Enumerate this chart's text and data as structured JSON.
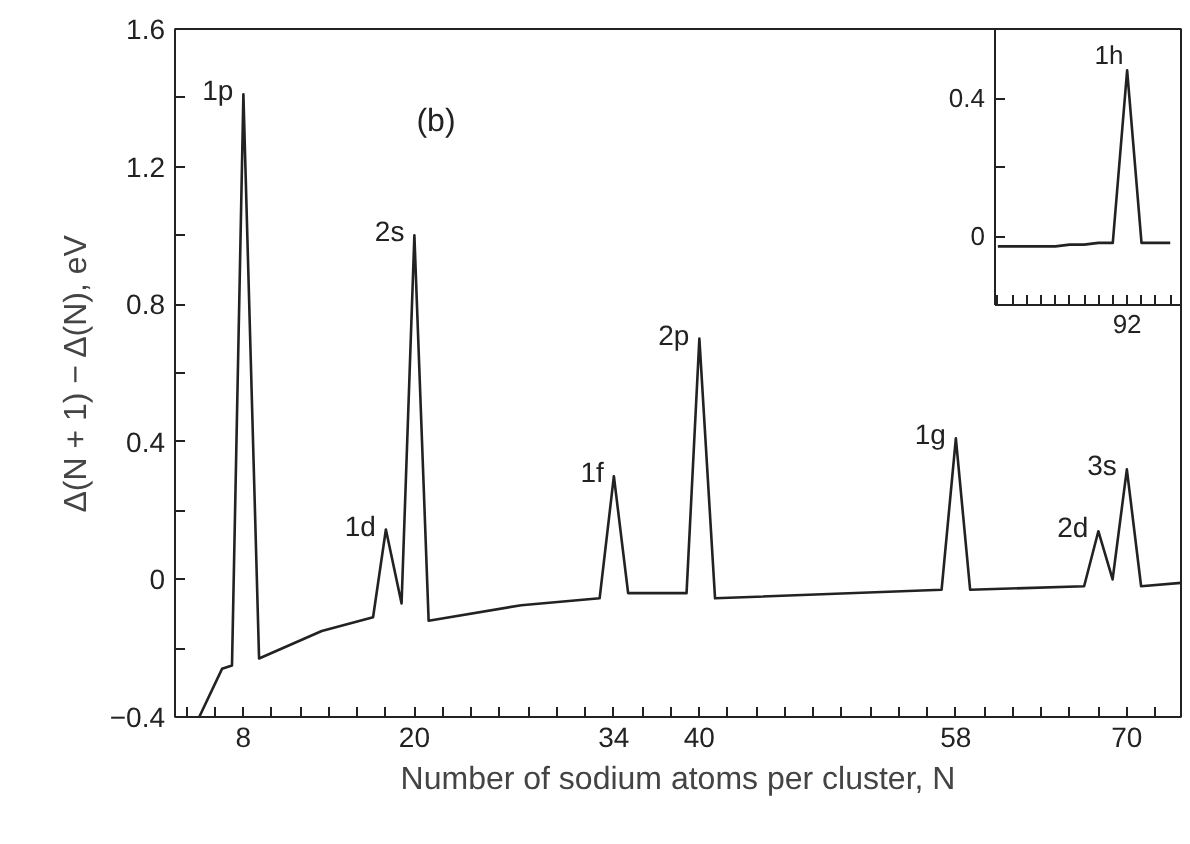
{
  "chart_data": [
    {
      "type": "line",
      "xlabel": "Number of sodium atoms per cluster, N",
      "ylabel": "Δ(N + 1) − Δ(N), eV",
      "xlim": [
        3.2,
        73.8
      ],
      "ylim": [
        -0.4,
        1.6
      ],
      "xticks": [
        {
          "value": 4,
          "label": null
        },
        {
          "value": 6,
          "label": null
        },
        8,
        {
          "value": 10,
          "label": null
        },
        {
          "value": 12,
          "label": null
        },
        {
          "value": 14,
          "label": null
        },
        {
          "value": 16,
          "label": null
        },
        {
          "value": 18,
          "label": null
        },
        20,
        {
          "value": 22,
          "label": null
        },
        {
          "value": 24,
          "label": null
        },
        {
          "value": 26,
          "label": null
        },
        {
          "value": 28,
          "label": null
        },
        {
          "value": 30,
          "label": null
        },
        {
          "value": 32,
          "label": null
        },
        34,
        {
          "value": 36,
          "label": null
        },
        {
          "value": 38,
          "label": null
        },
        40,
        {
          "value": 42,
          "label": null
        },
        {
          "value": 44,
          "label": null
        },
        {
          "value": 46,
          "label": null
        },
        {
          "value": 48,
          "label": null
        },
        {
          "value": 50,
          "label": null
        },
        {
          "value": 52,
          "label": null
        },
        {
          "value": 54,
          "label": null
        },
        {
          "value": 56,
          "label": null
        },
        58,
        {
          "value": 60,
          "label": null
        },
        {
          "value": 62,
          "label": null
        },
        {
          "value": 64,
          "label": null
        },
        {
          "value": 66,
          "label": null
        },
        {
          "value": 68,
          "label": null
        },
        70,
        {
          "value": 72,
          "label": null
        }
      ],
      "yticks": [
        -0.4,
        {
          "value": -0.2,
          "label": null
        },
        0,
        {
          "value": 0.2,
          "label": null
        },
        0.4,
        {
          "value": 0.6,
          "label": null
        },
        0.8,
        {
          "value": 1.0,
          "label": null
        },
        1.2,
        {
          "value": 1.4,
          "label": null
        },
        1.6
      ],
      "grid": false,
      "marker": "none",
      "line_style": "solid",
      "series": [
        {
          "color": "#222222",
          "x": [
            4.9,
            6.5,
            7.2,
            8,
            9.1,
            13.5,
            17.1,
            18,
            19.1,
            20,
            21,
            27.5,
            33,
            34,
            35,
            39.1,
            40,
            41.1,
            57,
            58,
            59,
            67,
            68,
            69,
            70,
            71,
            73.8
          ],
          "values": [
            -0.4,
            -0.26,
            -0.25,
            1.41,
            -0.23,
            -0.15,
            -0.11,
            0.145,
            -0.07,
            1.0,
            -0.12,
            -0.075,
            -0.055,
            0.3,
            -0.04,
            -0.04,
            0.7,
            -0.055,
            -0.03,
            0.41,
            -0.03,
            -0.02,
            0.14,
            0.0,
            0.32,
            -0.02,
            -0.01
          ]
        }
      ],
      "annotations": [
        "(b)",
        {
          "text": "1p",
          "x": 8,
          "y": 1.41
        },
        {
          "text": "1d",
          "x": 18,
          "y": 0.145
        },
        {
          "text": "2s",
          "x": 20,
          "y": 1.0
        },
        {
          "text": "1f",
          "x": 34,
          "y": 0.3
        },
        {
          "text": "2p",
          "x": 40,
          "y": 0.7
        },
        {
          "text": "1g",
          "x": 58,
          "y": 0.41
        },
        {
          "text": "2d",
          "x": 68,
          "y": 0.14
        },
        {
          "text": "3s",
          "x": 70,
          "y": 0.32
        }
      ]
    },
    {
      "type": "line",
      "ylim": [
        -0.2,
        0.6
      ],
      "categories": [
        null,
        null,
        null,
        null,
        null,
        null,
        null,
        null,
        null,
        "92",
        null,
        null,
        null
      ],
      "yticks": [
        0,
        {
          "value": 0.2,
          "label": null
        },
        0.4
      ],
      "grid": false,
      "marker": "none",
      "line_style": "solid",
      "series": [
        {
          "color": "#222222",
          "values": [
            -0.03,
            -0.03,
            -0.03,
            -0.03,
            -0.03,
            -0.025,
            -0.025,
            -0.02,
            -0.02,
            0.48,
            -0.02,
            -0.02,
            -0.02
          ]
        }
      ],
      "annotations": [
        "1h"
      ]
    }
  ]
}
